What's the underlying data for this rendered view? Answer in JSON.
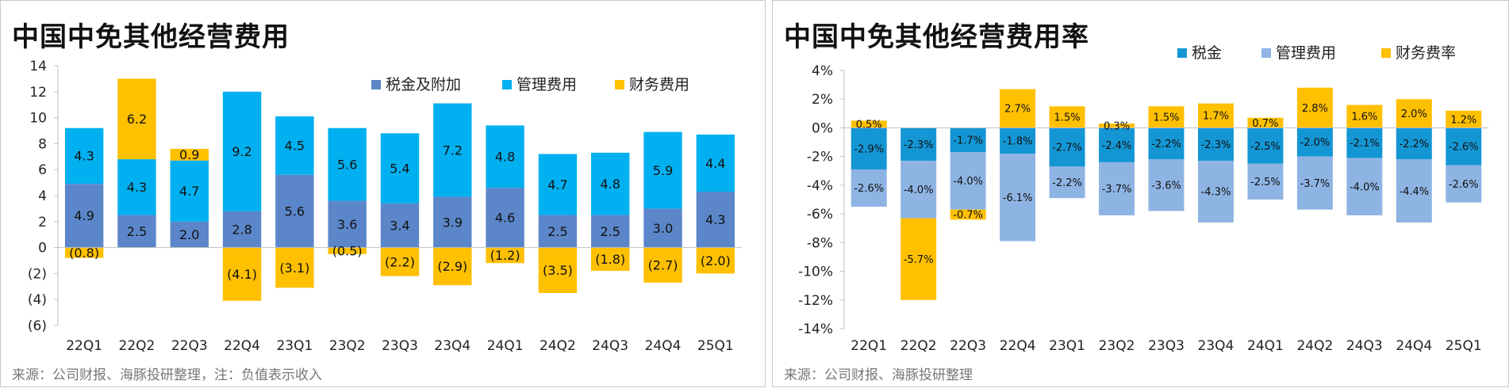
{
  "colors": {
    "tax_left": "#5b86c9",
    "mgmt_left": "#00b0f0",
    "fin": "#ffc000",
    "tax_right": "#1496d4",
    "mgmt_right": "#8eb4e3"
  },
  "left": {
    "title": "中国中免其他经营费用",
    "source": "来源：公司财报、海豚投研整理，注：负值表示收入"
  },
  "right": {
    "title": "中国中免其他经营费用率",
    "source": "来源：公司财报、海豚投研整理"
  },
  "chart_data": [
    {
      "type": "bar",
      "stacked": true,
      "title": "中国中免其他经营费用",
      "categories": [
        "22Q1",
        "22Q2",
        "22Q3",
        "22Q4",
        "23Q1",
        "23Q2",
        "23Q3",
        "23Q4",
        "24Q1",
        "24Q2",
        "24Q3",
        "24Q4",
        "25Q1"
      ],
      "series": [
        {
          "name": "税金及附加",
          "values": [
            4.9,
            2.5,
            2.0,
            2.8,
            5.6,
            3.6,
            3.4,
            3.9,
            4.6,
            2.5,
            2.5,
            3.0,
            4.3
          ]
        },
        {
          "name": "管理费用",
          "values": [
            4.3,
            4.3,
            4.7,
            9.2,
            4.5,
            5.6,
            5.4,
            7.2,
            4.8,
            4.7,
            4.8,
            5.9,
            4.4
          ]
        },
        {
          "name": "财务费用",
          "values": [
            -0.8,
            6.2,
            0.9,
            -4.1,
            -3.1,
            -0.5,
            -2.2,
            -2.9,
            -1.2,
            -3.5,
            -1.8,
            -2.7,
            -2.0
          ]
        }
      ],
      "data_labels": {
        "税金及附加": [
          "4.9",
          "2.5",
          "2.0",
          "2.8",
          "5.6",
          "3.6",
          "3.4",
          "3.9",
          "4.6",
          "2.5",
          "2.5",
          "3.0",
          "4.3"
        ],
        "管理费用": [
          "4.3",
          "4.3",
          "4.7",
          "9.2",
          "4.5",
          "5.6",
          "5.4",
          "7.2",
          "4.8",
          "4.7",
          "4.8",
          "5.9",
          "4.4"
        ],
        "财务费用": [
          "(0.8)",
          "6.2",
          "0.9",
          "(4.1)",
          "(3.1)",
          "(0.5)",
          "(2.2)",
          "(2.9)",
          "(1.2)",
          "(3.5)",
          "(1.8)",
          "(2.7)",
          "(2.0)"
        ]
      },
      "ylim": [
        -6,
        14
      ],
      "yticks": [
        14,
        12,
        10,
        8,
        6,
        4,
        2,
        0,
        -2,
        -4,
        -6
      ],
      "ytick_labels": [
        "14",
        "12",
        "10",
        "8",
        "6",
        "4",
        "2",
        "0",
        "(2)",
        "(4)",
        "(6)"
      ],
      "legend_position": "top-right",
      "grid": false
    },
    {
      "type": "bar",
      "stacked": true,
      "title": "中国中免其他经营费用率",
      "categories": [
        "22Q1",
        "22Q2",
        "22Q3",
        "22Q4",
        "23Q1",
        "23Q2",
        "23Q3",
        "23Q4",
        "24Q1",
        "24Q2",
        "24Q3",
        "24Q4",
        "25Q1"
      ],
      "series": [
        {
          "name": "税金",
          "values": [
            -2.9,
            -2.3,
            -1.7,
            -1.8,
            -2.7,
            -2.4,
            -2.2,
            -2.3,
            -2.5,
            -2.0,
            -2.1,
            -2.2,
            -2.6
          ]
        },
        {
          "name": "管理费用",
          "values": [
            -2.6,
            -4.0,
            -4.0,
            -6.1,
            -2.2,
            -3.7,
            -3.6,
            -4.3,
            -2.5,
            -3.7,
            -4.0,
            -4.4,
            -2.6
          ]
        },
        {
          "name": "财务费率",
          "values": [
            0.5,
            -5.7,
            -0.7,
            2.7,
            1.5,
            0.3,
            1.5,
            1.7,
            0.7,
            2.8,
            1.6,
            2.0,
            1.2
          ]
        }
      ],
      "data_labels": {
        "税金": [
          "-2.9%",
          "-2.3%",
          "-1.7%",
          "-1.8%",
          "-2.7%",
          "-2.4%",
          "-2.2%",
          "-2.3%",
          "-2.5%",
          "-2.0%",
          "-2.1%",
          "-2.2%",
          "-2.6%"
        ],
        "管理费用": [
          "-2.6%",
          "-4.0%",
          "-4.0%",
          "-6.1%",
          "-2.2%",
          "-3.7%",
          "-3.6%",
          "-4.3%",
          "-2.5%",
          "-3.7%",
          "-4.0%",
          "-4.4%",
          "-2.6%"
        ],
        "财务费率": [
          "0.5%",
          "-5.7%",
          "-0.7%",
          "2.7%",
          "1.5%",
          "0.3%",
          "1.5%",
          "1.7%",
          "0.7%",
          "2.8%",
          "1.6%",
          "2.0%",
          "1.2%"
        ]
      },
      "ylim": [
        -14,
        4
      ],
      "yticks": [
        4,
        2,
        0,
        -2,
        -4,
        -6,
        -8,
        -10,
        -12,
        -14
      ],
      "ytick_labels": [
        "4%",
        "2%",
        "0%",
        "-2%",
        "-4%",
        "-6%",
        "-8%",
        "-10%",
        "-12%",
        "-14%"
      ],
      "legend_position": "top-right",
      "grid": false
    }
  ]
}
